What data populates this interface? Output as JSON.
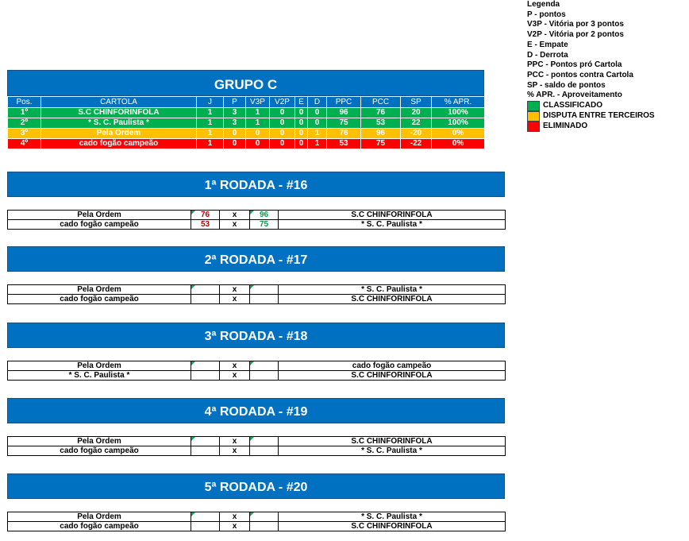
{
  "legend": {
    "title": "Legenda",
    "lines": [
      "P - pontos",
      "V3P - Vitória por 3 pontos",
      "V2P - Vitória por 2 pontos",
      "E - Empate",
      "D - Derrota",
      "PPC - Pontos pró Cartola",
      "PCC - pontos contra Cartola",
      "SP - saldo de pontos",
      "% APR. - Aproveitamento"
    ],
    "swatches": [
      {
        "label": "CLASSIFICADO",
        "color": "#00b050"
      },
      {
        "label": "DISPUTA ENTRE TERCEIROS",
        "color": "#ffc000"
      },
      {
        "label": "ELIMINADO",
        "color": "#ff0000"
      }
    ]
  },
  "group": {
    "title": "GRUPO C",
    "headers": [
      "Pos.",
      "CARTOLA",
      "J",
      "P",
      "V3P",
      "V2P",
      "E",
      "D",
      "PPC",
      "PCC",
      "SP",
      "% APR."
    ],
    "rows": [
      {
        "status": "green",
        "cells": [
          "1º",
          "S.C CHINFORINFOLA",
          "1",
          "3",
          "1",
          "0",
          "0",
          "0",
          "96",
          "76",
          "20",
          "100%"
        ]
      },
      {
        "status": "green",
        "cells": [
          "2º",
          "* S. C. Paulista *",
          "1",
          "3",
          "1",
          "0",
          "0",
          "0",
          "75",
          "53",
          "22",
          "100%"
        ]
      },
      {
        "status": "yellow",
        "cells": [
          "3º",
          "Pela Ordem",
          "1",
          "0",
          "0",
          "0",
          "0",
          "1",
          "76",
          "96",
          "-20",
          "0%"
        ]
      },
      {
        "status": "red",
        "cells": [
          "4º",
          "cado fogão campeão",
          "1",
          "0",
          "0",
          "0",
          "0",
          "1",
          "53",
          "75",
          "-22",
          "0%"
        ]
      }
    ]
  },
  "rounds": [
    {
      "title": "1ª RODADA - #16",
      "matches": [
        {
          "home": "Pela Ordem",
          "home_score": "76",
          "x": "x",
          "away_score": "96",
          "away": "S.C CHINFORINFOLA"
        },
        {
          "home": "cado fogão campeão",
          "home_score": "53",
          "x": "x",
          "away_score": "75",
          "away": "* S. C. Paulista *"
        }
      ]
    },
    {
      "title": "2ª RODADA - #17",
      "matches": [
        {
          "home": "Pela Ordem",
          "home_score": "",
          "x": "x",
          "away_score": "",
          "away": "* S. C. Paulista *"
        },
        {
          "home": "cado fogão campeão",
          "home_score": "",
          "x": "x",
          "away_score": "",
          "away": "S.C CHINFORINFOLA"
        }
      ]
    },
    {
      "title": "3ª RODADA - #18",
      "matches": [
        {
          "home": "Pela Ordem",
          "home_score": "",
          "x": "x",
          "away_score": "",
          "away": "cado fogão campeão"
        },
        {
          "home": "* S. C. Paulista *",
          "home_score": "",
          "x": "x",
          "away_score": "",
          "away": "S.C CHINFORINFOLA"
        }
      ]
    },
    {
      "title": "4ª RODADA - #19",
      "matches": [
        {
          "home": "Pela Ordem",
          "home_score": "",
          "x": "x",
          "away_score": "",
          "away": "S.C CHINFORINFOLA"
        },
        {
          "home": "cado fogão campeão",
          "home_score": "",
          "x": "x",
          "away_score": "",
          "away": "* S. C. Paulista *"
        }
      ]
    },
    {
      "title": "5ª RODADA - #20",
      "matches": [
        {
          "home": "Pela Ordem",
          "home_score": "",
          "x": "x",
          "away_score": "",
          "away": "* S. C. Paulista *"
        },
        {
          "home": "cado fogão campeão",
          "home_score": "",
          "x": "x",
          "away_score": "",
          "away": "S.C CHINFORINFOLA"
        }
      ]
    }
  ]
}
